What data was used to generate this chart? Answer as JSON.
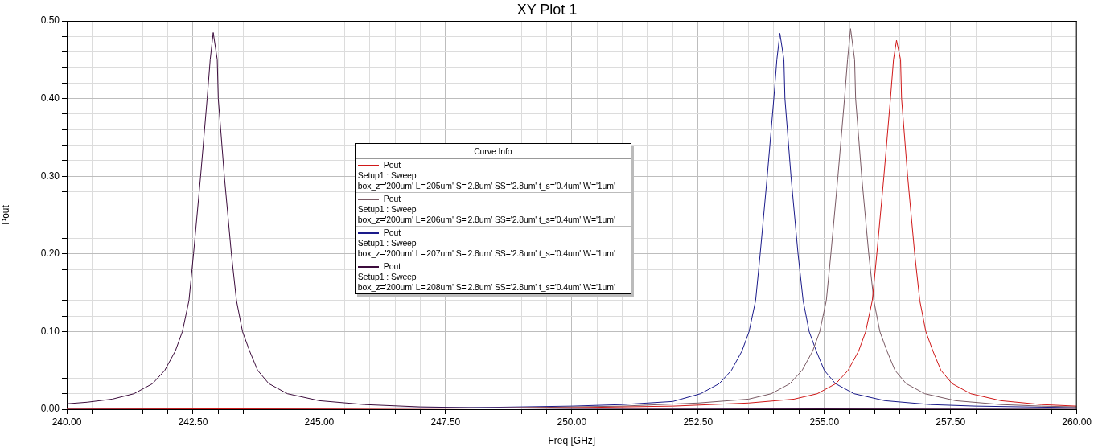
{
  "chart_data": {
    "type": "line",
    "title": "XY Plot 1",
    "xlabel": "Freq [GHz]",
    "ylabel": "Pout",
    "legend_title": "Curve Info",
    "legend": "center",
    "marker": "none",
    "line_style": "solid",
    "grid": true,
    "xlim": [
      240,
      260
    ],
    "ylim": [
      0,
      0.5
    ],
    "xticks": [
      {
        "value": 240,
        "label": "240.00"
      },
      {
        "value": 240.5,
        "label": null
      },
      {
        "value": 241,
        "label": null
      },
      {
        "value": 241.5,
        "label": null
      },
      {
        "value": 242,
        "label": null
      },
      {
        "value": 242.5,
        "label": "242.50"
      },
      {
        "value": 243,
        "label": null
      },
      {
        "value": 243.5,
        "label": null
      },
      {
        "value": 244,
        "label": null
      },
      {
        "value": 244.5,
        "label": null
      },
      {
        "value": 245,
        "label": "245.00"
      },
      {
        "value": 245.5,
        "label": null
      },
      {
        "value": 246,
        "label": null
      },
      {
        "value": 246.5,
        "label": null
      },
      {
        "value": 247,
        "label": null
      },
      {
        "value": 247.5,
        "label": "247.50"
      },
      {
        "value": 248,
        "label": null
      },
      {
        "value": 248.5,
        "label": null
      },
      {
        "value": 249,
        "label": null
      },
      {
        "value": 249.5,
        "label": null
      },
      {
        "value": 250,
        "label": "250.00"
      },
      {
        "value": 250.5,
        "label": null
      },
      {
        "value": 251,
        "label": null
      },
      {
        "value": 251.5,
        "label": null
      },
      {
        "value": 252,
        "label": null
      },
      {
        "value": 252.5,
        "label": "252.50"
      },
      {
        "value": 253,
        "label": null
      },
      {
        "value": 253.5,
        "label": null
      },
      {
        "value": 254,
        "label": null
      },
      {
        "value": 254.5,
        "label": null
      },
      {
        "value": 255,
        "label": "255.00"
      },
      {
        "value": 255.5,
        "label": null
      },
      {
        "value": 256,
        "label": null
      },
      {
        "value": 256.5,
        "label": null
      },
      {
        "value": 257,
        "label": null
      },
      {
        "value": 257.5,
        "label": "257.50"
      },
      {
        "value": 258,
        "label": null
      },
      {
        "value": 258.5,
        "label": null
      },
      {
        "value": 259,
        "label": null
      },
      {
        "value": 259.5,
        "label": null
      },
      {
        "value": 260,
        "label": "260.00"
      }
    ],
    "yticks": [
      {
        "value": 0,
        "label": "0.00"
      },
      {
        "value": 0.02,
        "label": null
      },
      {
        "value": 0.04,
        "label": null
      },
      {
        "value": 0.06,
        "label": null
      },
      {
        "value": 0.08,
        "label": null
      },
      {
        "value": 0.1,
        "label": "0.10"
      },
      {
        "value": 0.12,
        "label": null
      },
      {
        "value": 0.14,
        "label": null
      },
      {
        "value": 0.16,
        "label": null
      },
      {
        "value": 0.18,
        "label": null
      },
      {
        "value": 0.2,
        "label": "0.20"
      },
      {
        "value": 0.22,
        "label": null
      },
      {
        "value": 0.24,
        "label": null
      },
      {
        "value": 0.26,
        "label": null
      },
      {
        "value": 0.28,
        "label": null
      },
      {
        "value": 0.3,
        "label": "0.30"
      },
      {
        "value": 0.32,
        "label": null
      },
      {
        "value": 0.34,
        "label": null
      },
      {
        "value": 0.36,
        "label": null
      },
      {
        "value": 0.38,
        "label": null
      },
      {
        "value": 0.4,
        "label": "0.40"
      },
      {
        "value": 0.42,
        "label": null
      },
      {
        "value": 0.44,
        "label": null
      },
      {
        "value": 0.46,
        "label": null
      },
      {
        "value": 0.48,
        "label": null
      },
      {
        "value": 0.5,
        "label": "0.50"
      }
    ],
    "annotations": [
      "Setup1 : Sweep",
      "box_z='200um' L='205um' S='2.8um' SS='2.8um' t_s='0.4um' W='1um'",
      "Setup1 : Sweep",
      "box_z='200um' L='206um' S='2.8um' SS='2.8um' t_s='0.4um' W='1um'",
      "Setup1 : Sweep",
      "box_z='200um' L='207um' S='2.8um' SS='2.8um' t_s='0.4um' W='1um'",
      "Setup1 : Sweep",
      "box_z='200um' L='208um' S='2.8um' SS='2.8um' t_s='0.4um' W='1um'"
    ],
    "series": [
      {
        "name": "Pout",
        "color": "#d01818",
        "x": [
          240,
          246,
          250,
          252,
          253.5,
          254.4,
          254.86,
          255.23,
          255.47,
          255.68,
          255.82,
          255.95,
          256.04,
          256.18,
          256.31,
          256.37,
          256.43,
          256.51,
          256.53,
          256.65,
          256.79,
          256.89,
          257.01,
          257.15,
          257.31,
          257.53,
          257.9,
          258.5,
          259.3,
          260
        ],
        "values": [
          0,
          0.001,
          0.002,
          0.004,
          0.008,
          0.013,
          0.02,
          0.033,
          0.05,
          0.075,
          0.1,
          0.14,
          0.2,
          0.3,
          0.4,
          0.45,
          0.475,
          0.45,
          0.4,
          0.3,
          0.2,
          0.14,
          0.1,
          0.075,
          0.05,
          0.033,
          0.02,
          0.011,
          0.006,
          0.004
        ]
      },
      {
        "name": "Pout",
        "color": "#7a5a64",
        "x": [
          240,
          245,
          249,
          251,
          252.5,
          253.5,
          253.95,
          254.32,
          254.56,
          254.77,
          254.91,
          255.04,
          255.13,
          255.27,
          255.4,
          255.46,
          255.52,
          255.6,
          255.62,
          255.74,
          255.88,
          255.98,
          256.1,
          256.24,
          256.4,
          256.62,
          256.99,
          257.6,
          258.5,
          259.3,
          260
        ],
        "values": [
          0,
          0.001,
          0.002,
          0.004,
          0.008,
          0.013,
          0.02,
          0.033,
          0.05,
          0.075,
          0.1,
          0.14,
          0.2,
          0.3,
          0.4,
          0.45,
          0.49,
          0.45,
          0.4,
          0.3,
          0.2,
          0.14,
          0.1,
          0.075,
          0.05,
          0.033,
          0.02,
          0.011,
          0.006,
          0.004,
          0.003
        ]
      },
      {
        "name": "Pout",
        "color": "#1a1a8a",
        "x": [
          240,
          244,
          248,
          250,
          251,
          252,
          252.55,
          252.92,
          253.16,
          253.37,
          253.51,
          253.64,
          253.73,
          253.87,
          254,
          254.06,
          254.12,
          254.2,
          254.22,
          254.34,
          254.48,
          254.58,
          254.7,
          254.84,
          255,
          255.22,
          255.59,
          256.2,
          257.1,
          258,
          259,
          260
        ],
        "values": [
          0,
          0.001,
          0.002,
          0.004,
          0.006,
          0.01,
          0.02,
          0.033,
          0.05,
          0.075,
          0.1,
          0.14,
          0.2,
          0.3,
          0.4,
          0.45,
          0.484,
          0.45,
          0.4,
          0.3,
          0.2,
          0.14,
          0.1,
          0.075,
          0.05,
          0.033,
          0.02,
          0.011,
          0.006,
          0.004,
          0.003,
          0.002
        ]
      },
      {
        "name": "Pout",
        "color": "#3c0c3c",
        "x": [
          240,
          240.4,
          240.9,
          241.33,
          241.7,
          241.94,
          242.15,
          242.29,
          242.42,
          242.51,
          242.65,
          242.78,
          242.84,
          242.9,
          242.98,
          243,
          243.12,
          243.26,
          243.36,
          243.48,
          243.62,
          243.78,
          244,
          244.37,
          245,
          245.9,
          247,
          248,
          250,
          260
        ],
        "values": [
          0.007,
          0.009,
          0.013,
          0.02,
          0.033,
          0.05,
          0.075,
          0.1,
          0.14,
          0.2,
          0.3,
          0.4,
          0.45,
          0.485,
          0.45,
          0.4,
          0.3,
          0.2,
          0.14,
          0.1,
          0.075,
          0.05,
          0.033,
          0.02,
          0.011,
          0.006,
          0.003,
          0.002,
          0.001,
          0
        ]
      }
    ]
  }
}
